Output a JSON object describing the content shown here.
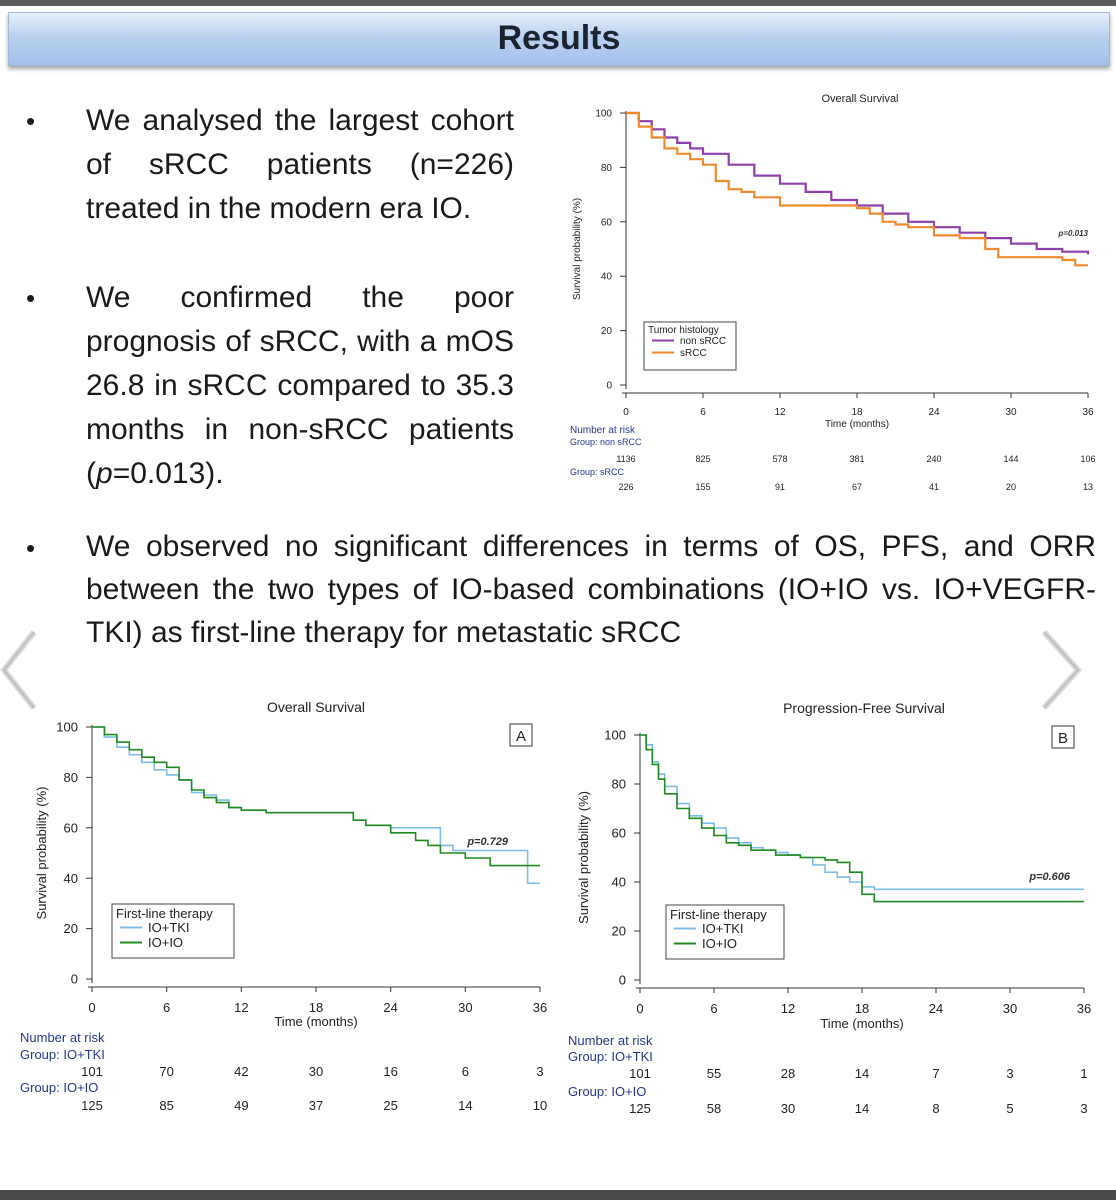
{
  "banner": {
    "title": "Results"
  },
  "bullets_left": [
    {
      "text": "We analysed the largest cohort of sRCC patients (n=226) treated in the modern era IO."
    },
    {
      "pre": "We confirmed the poor prognosis of sRCC, with a mOS 26.8 in sRCC compared to 35.3 months in non-sRCC patients (",
      "p": "p",
      "post": "=0.013)."
    }
  ],
  "bullet_full": {
    "text": "We observed no significant differences in terms of OS, PFS, and ORR between the two types of IO-based combinations (IO+IO vs. IO+VEGFR-TKI) as first-line therapy for metastatic sRCC"
  },
  "nav": {
    "prev": "previous-slide",
    "next": "next-slide"
  },
  "chart_data": [
    {
      "type": "line",
      "title": "Overall Survival",
      "xlabel": "Time (months)",
      "ylabel": "Survival probability (%)",
      "xlim": [
        0,
        36
      ],
      "ylim": [
        0,
        100
      ],
      "xticks": [
        0,
        6,
        12,
        18,
        24,
        30,
        36
      ],
      "yticks": [
        0,
        20,
        40,
        60,
        80,
        100
      ],
      "legend_title": "Tumor histology",
      "pvalue": "p=0.013",
      "series": [
        {
          "name": "non sRCC",
          "color": "#8e3fa8",
          "x": [
            0,
            1,
            2,
            3,
            4,
            5,
            6,
            8,
            10,
            12,
            14,
            16,
            18,
            20,
            22,
            24,
            26,
            28,
            30,
            32,
            34,
            35,
            36
          ],
          "y": [
            100,
            97,
            94,
            91,
            89,
            87,
            85,
            81,
            77,
            74,
            71,
            68,
            66,
            63,
            60,
            58,
            56,
            54,
            52,
            50,
            49,
            49,
            48
          ]
        },
        {
          "name": "sRCC",
          "color": "#f08a2c",
          "x": [
            0,
            1,
            2,
            3,
            4,
            5,
            6,
            7,
            8,
            9,
            10,
            12,
            14,
            16,
            18,
            19,
            20,
            21,
            22,
            24,
            26,
            28,
            29,
            30,
            32,
            34,
            35,
            36
          ],
          "y": [
            100,
            95,
            91,
            87,
            85,
            83,
            81,
            75,
            72,
            71,
            69,
            66,
            66,
            66,
            65,
            63,
            60,
            59,
            58,
            55,
            54,
            50,
            47,
            47,
            47,
            46,
            44,
            44
          ]
        }
      ],
      "risk_table": {
        "header": "Number at risk",
        "groups": [
          {
            "label": "Group: non sRCC",
            "values": [
              1136,
              825,
              578,
              381,
              240,
              144,
              106
            ]
          },
          {
            "label": "Group: sRCC",
            "values": [
              226,
              155,
              91,
              67,
              41,
              20,
              13
            ]
          }
        ]
      }
    },
    {
      "type": "line",
      "title": "Overall Survival",
      "panel": "A",
      "xlabel": "Time (months)",
      "ylabel": "Survival probability (%)",
      "xlim": [
        0,
        36
      ],
      "ylim": [
        0,
        100
      ],
      "xticks": [
        0,
        6,
        12,
        18,
        24,
        30,
        36
      ],
      "yticks": [
        0,
        20,
        40,
        60,
        80,
        100
      ],
      "legend_title": "First-line therapy",
      "pvalue": "p=0.729",
      "series": [
        {
          "name": "IO+TKI",
          "color": "#7fbde8",
          "x": [
            0,
            1,
            2,
            3,
            4,
            5,
            6,
            7,
            8,
            9,
            10,
            11,
            12,
            14,
            16,
            18,
            20,
            21,
            22,
            24,
            25,
            26,
            27,
            28,
            29,
            30,
            32,
            34,
            35,
            36
          ],
          "y": [
            100,
            96,
            92,
            89,
            86,
            83,
            81,
            79,
            74,
            73,
            71,
            68,
            67,
            66,
            66,
            66,
            66,
            63,
            61,
            60,
            60,
            60,
            60,
            53,
            51,
            51,
            51,
            51,
            38,
            38
          ]
        },
        {
          "name": "IO+IO",
          "color": "#1f8a1f",
          "x": [
            0,
            1,
            2,
            3,
            4,
            5,
            6,
            7,
            8,
            9,
            10,
            11,
            12,
            14,
            16,
            18,
            20,
            21,
            22,
            24,
            26,
            27,
            28,
            30,
            32,
            34,
            36
          ],
          "y": [
            100,
            97,
            94,
            91,
            88,
            86,
            84,
            79,
            75,
            72,
            70,
            68,
            67,
            66,
            66,
            66,
            66,
            63,
            61,
            58,
            55,
            53,
            50,
            48,
            45,
            45,
            45
          ]
        }
      ],
      "risk_table": {
        "header": "Number at risk",
        "groups": [
          {
            "label": "Group: IO+TKI",
            "values": [
              101,
              70,
              42,
              30,
              16,
              6,
              3
            ]
          },
          {
            "label": "Group: IO+IO",
            "values": [
              125,
              85,
              49,
              37,
              25,
              14,
              10
            ]
          }
        ]
      }
    },
    {
      "type": "line",
      "title": "Progression-Free Survival",
      "panel": "B",
      "xlabel": "Time (months)",
      "ylabel": "Survival probability (%)",
      "xlim": [
        0,
        36
      ],
      "ylim": [
        0,
        100
      ],
      "xticks": [
        0,
        6,
        12,
        18,
        24,
        30,
        36
      ],
      "yticks": [
        0,
        20,
        40,
        60,
        80,
        100
      ],
      "legend_title": "First-line therapy",
      "pvalue": "p=0.606",
      "series": [
        {
          "name": "IO+TKI",
          "color": "#7fbde8",
          "x": [
            0,
            0.5,
            1,
            1.5,
            2,
            3,
            4,
            5,
            6,
            7,
            8,
            9,
            10,
            11,
            12,
            13,
            14,
            15,
            16,
            17,
            18,
            19,
            20,
            24,
            30,
            36
          ],
          "y": [
            100,
            96,
            89,
            84,
            79,
            72,
            67,
            64,
            62,
            58,
            56,
            54,
            53,
            52,
            51,
            50,
            47,
            44,
            42,
            40,
            38,
            37,
            37,
            37,
            37,
            37
          ]
        },
        {
          "name": "IO+IO",
          "color": "#1f8a1f",
          "x": [
            0,
            0.5,
            1,
            1.5,
            2,
            3,
            4,
            5,
            6,
            7,
            8,
            9,
            10,
            11,
            12,
            13,
            14,
            15,
            16,
            17,
            18,
            19,
            20,
            24,
            30,
            36
          ],
          "y": [
            100,
            94,
            88,
            82,
            76,
            70,
            66,
            62,
            59,
            56,
            55,
            53,
            53,
            51,
            51,
            50,
            50,
            49,
            48,
            44,
            35,
            32,
            32,
            32,
            32,
            32
          ]
        }
      ],
      "risk_table": {
        "header": "Number at risk",
        "groups": [
          {
            "label": "Group: IO+TKI",
            "values": [
              101,
              55,
              28,
              14,
              7,
              3,
              1
            ]
          },
          {
            "label": "Group: IO+IO",
            "values": [
              125,
              58,
              30,
              14,
              8,
              5,
              3
            ]
          }
        ]
      }
    }
  ]
}
